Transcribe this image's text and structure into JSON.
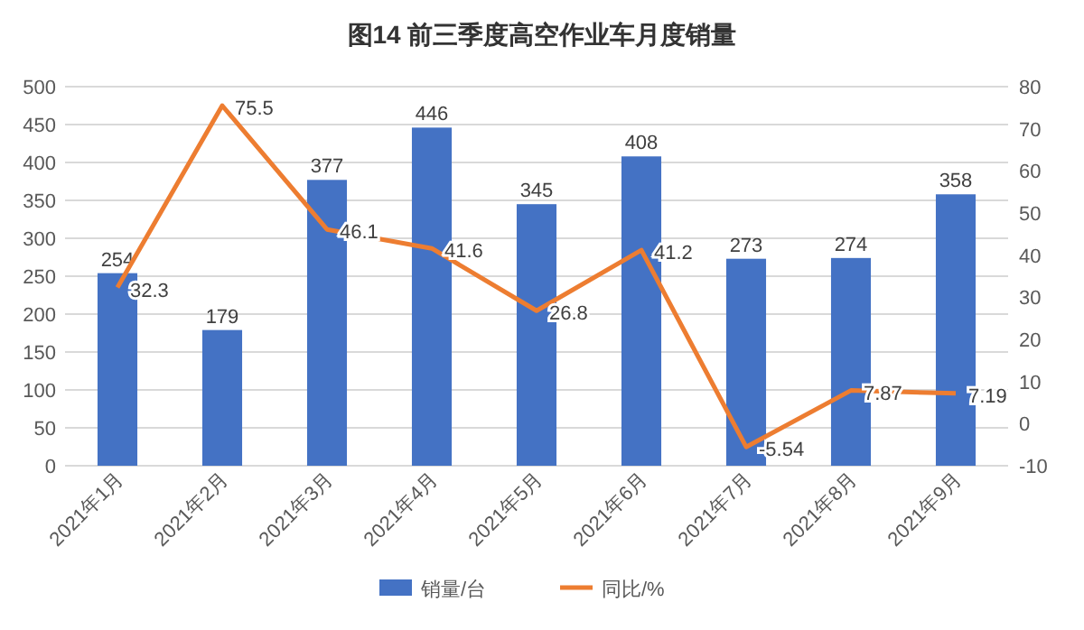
{
  "chart_data": {
    "type": "bar",
    "title": "图14  前三季度高空作业车月度销量",
    "categories": [
      "2021年1月",
      "2021年2月",
      "2021年3月",
      "2021年4月",
      "2021年5月",
      "2021年6月",
      "2021年7月",
      "2021年8月",
      "2021年9月"
    ],
    "series": [
      {
        "name": "销量/台",
        "color": "#4472c4",
        "values": [
          254,
          179,
          377,
          446,
          345,
          408,
          273,
          274,
          358
        ]
      },
      {
        "name": "同比/%",
        "type": "line",
        "axis": "y2",
        "color": "#ed7d31",
        "values": [
          32.3,
          75.5,
          46.1,
          41.6,
          26.8,
          41.2,
          -5.54,
          7.87,
          7.19
        ]
      }
    ],
    "ylim": [
      0,
      500
    ],
    "yticks": [
      0,
      50,
      100,
      150,
      200,
      250,
      300,
      350,
      400,
      450,
      500
    ],
    "y2lim": [
      -10,
      80
    ],
    "y2ticks": [
      -10,
      0,
      10,
      20,
      30,
      40,
      50,
      60,
      70,
      80
    ],
    "data_labels": true,
    "grid": "y",
    "legend": "bottom",
    "marker": "none"
  }
}
